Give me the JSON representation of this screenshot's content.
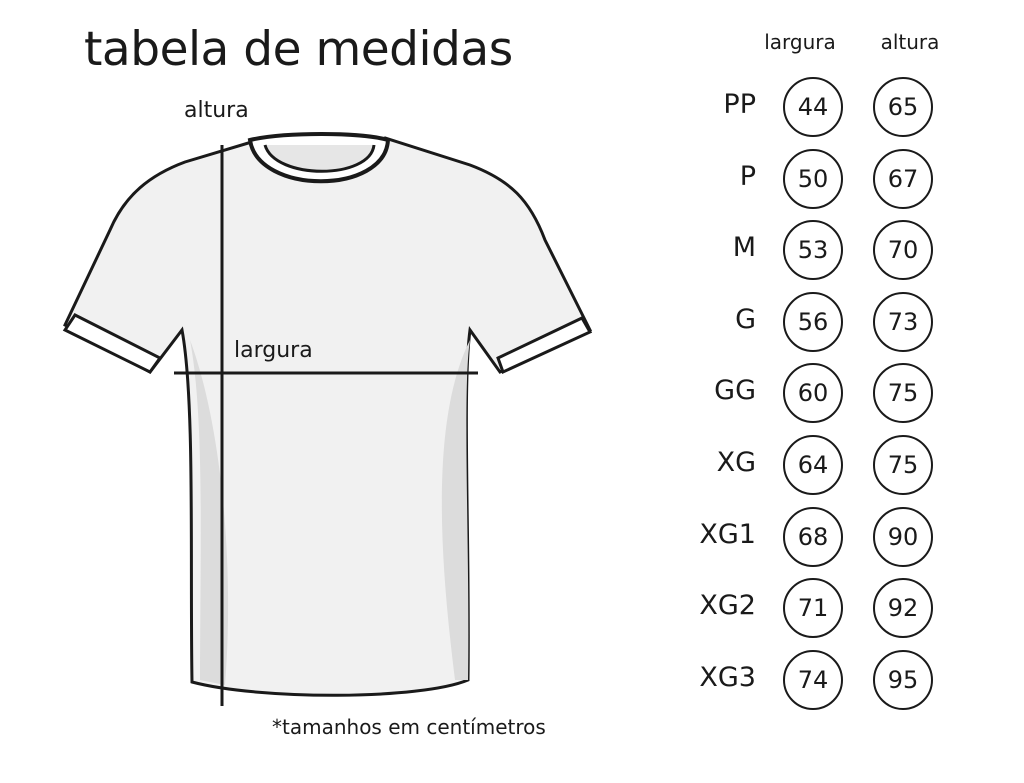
{
  "title": "tabela de medidas",
  "diagram": {
    "height_label": "altura",
    "width_label": "largura"
  },
  "note": "*tamanhos em centímetros",
  "table": {
    "headers": [
      "largura",
      "altura"
    ],
    "rows": [
      {
        "size": "PP",
        "largura": "44",
        "altura": "65"
      },
      {
        "size": "P",
        "largura": "50",
        "altura": "67"
      },
      {
        "size": "M",
        "largura": "53",
        "altura": "70"
      },
      {
        "size": "G",
        "largura": "56",
        "altura": "73"
      },
      {
        "size": "GG",
        "largura": "60",
        "altura": "75"
      },
      {
        "size": "XG",
        "largura": "64",
        "altura": "75"
      },
      {
        "size": "XG1",
        "largura": "68",
        "altura": "90"
      },
      {
        "size": "XG2",
        "largura": "71",
        "altura": "92"
      },
      {
        "size": "XG3",
        "largura": "74",
        "altura": "95"
      }
    ]
  }
}
